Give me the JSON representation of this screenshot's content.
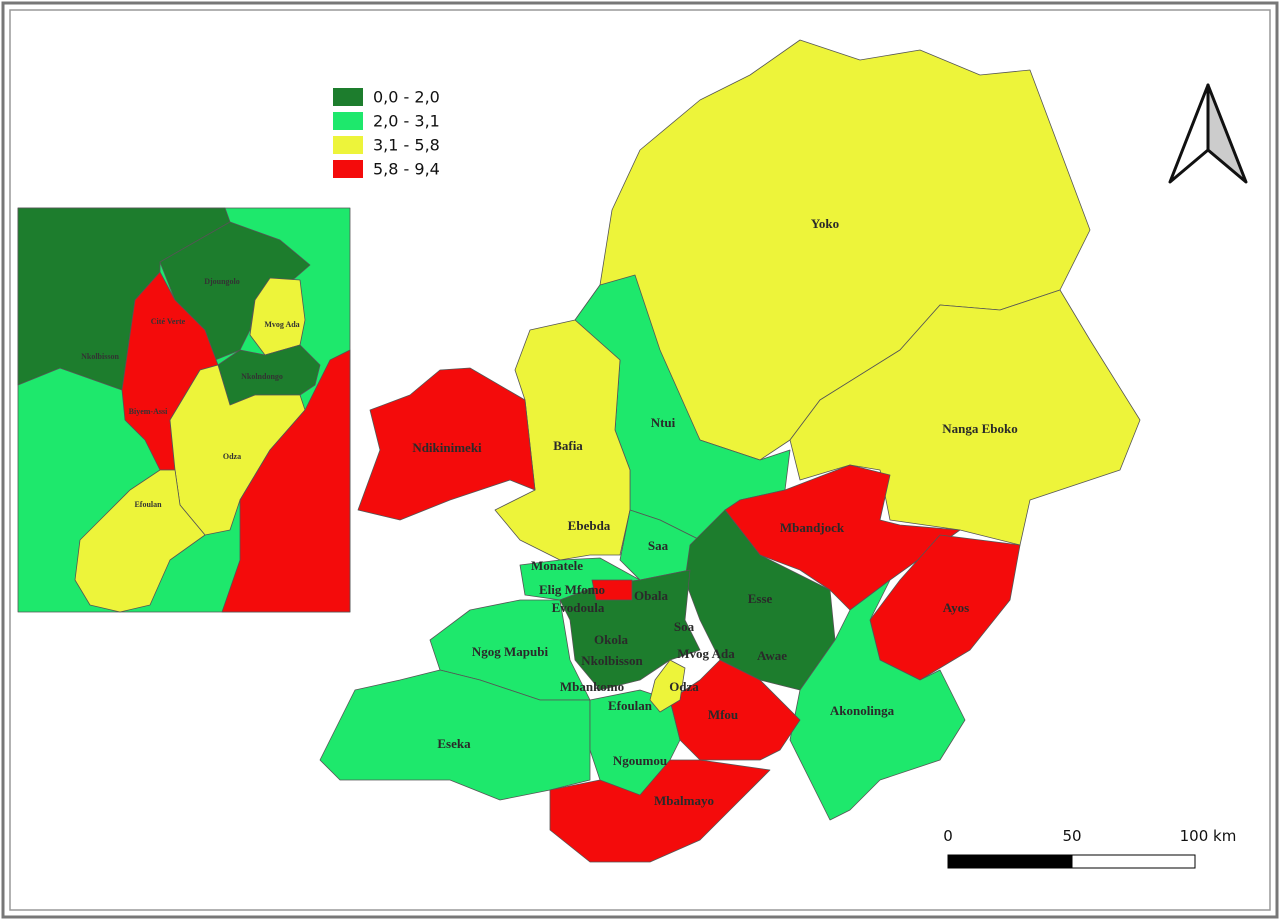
{
  "legend": {
    "items": [
      {
        "label": "0,0 - 2,0",
        "color": "#1d7d2d"
      },
      {
        "label": "2,0 - 3,1",
        "color": "#1ee86c"
      },
      {
        "label": "3,1 - 5,8",
        "color": "#edf43a"
      },
      {
        "label": "5,8 - 9,4",
        "color": "#f40b0b"
      }
    ]
  },
  "map_labels": [
    "Yoko",
    "Nanga Eboko",
    "Ntui",
    "Bafia",
    "Ndikinimeki",
    "Ebebda",
    "Saa",
    "Mbandjock",
    "Monatele",
    "Elig Mfomo",
    "Evodoula",
    "Obala",
    "Esse",
    "Ayos",
    "Soa",
    "Okola",
    "Ngog Mapubi",
    "Nkolbisson",
    "Mvog Ada",
    "Awae",
    "Mbankomo",
    "Odza",
    "Efoulan",
    "Mfou",
    "Akonolinga",
    "Eseka",
    "Ngoumou",
    "Mbalmayo"
  ],
  "inset_labels": [
    "Djoungolo",
    "Cité Verte",
    "Mvog Ada",
    "Nkolbisson",
    "Nkolndongo",
    "Biyem-Assi",
    "Odza",
    "Efoulan"
  ],
  "scale_bar": {
    "labels": [
      "0",
      "50",
      "100 km"
    ]
  }
}
